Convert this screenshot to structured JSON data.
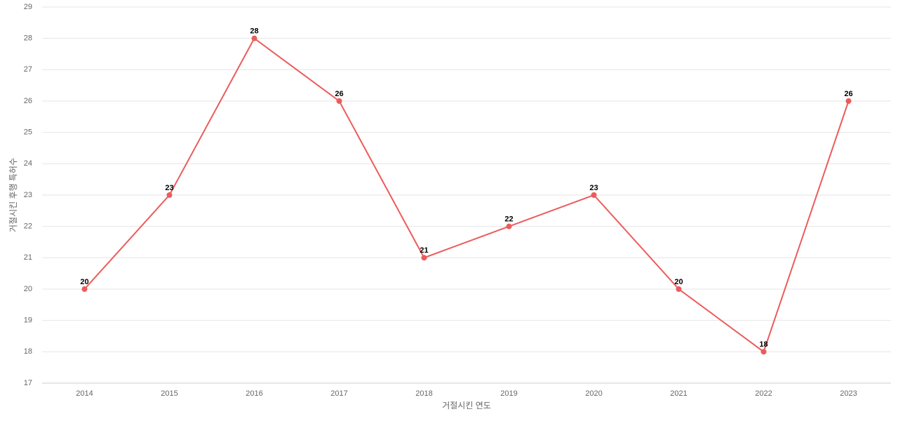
{
  "chart_data": {
    "type": "line",
    "categories": [
      "2014",
      "2015",
      "2016",
      "2017",
      "2018",
      "2019",
      "2020",
      "2021",
      "2022",
      "2023"
    ],
    "series": [
      {
        "name": "거절시킨 후행 특허수",
        "color": "#ec5b5b",
        "values": [
          20,
          23,
          28,
          26,
          21,
          22,
          23,
          20,
          18,
          26
        ]
      }
    ],
    "x_label": "거절시킨 연도",
    "y_label": "거절시킨 후행 특허수",
    "ylim": [
      17,
      29
    ],
    "yticks": [
      17,
      18,
      19,
      20,
      21,
      22,
      23,
      24,
      25,
      26,
      27,
      28,
      29
    ],
    "grid": true
  }
}
